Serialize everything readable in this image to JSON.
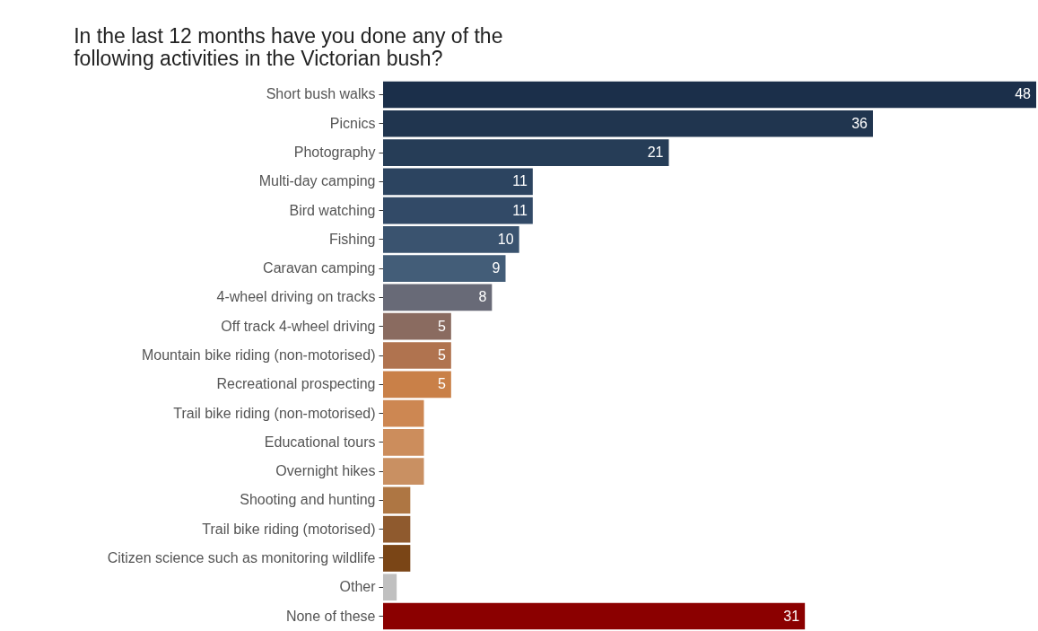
{
  "chart_data": {
    "type": "bar",
    "orientation": "horizontal",
    "title": "In the last 12 months have you done any of the following activities in the Victorian bush?",
    "categories": [
      "Short bush walks",
      "Picnics",
      "Photography",
      "Multi-day camping",
      "Bird watching",
      "Fishing",
      "Caravan camping",
      "4-wheel driving on tracks",
      "Off track 4-wheel driving",
      "Mountain bike riding (non-motorised)",
      "Recreational prospecting",
      "Trail bike riding (non-motorised)",
      "Educational tours",
      "Overnight hikes",
      "Shooting and hunting",
      "Trail bike riding (motorised)",
      "Citizen science such as monitoring wildlife",
      "Other",
      "None of these"
    ],
    "values": [
      48,
      36,
      21,
      11,
      11,
      10,
      9,
      8,
      5,
      5,
      5,
      3,
      3,
      3,
      2,
      2,
      2,
      1,
      31
    ],
    "value_labels": [
      "48",
      "36",
      "21",
      "11",
      "11",
      "10",
      "9",
      "8",
      "5",
      "5",
      "5",
      null,
      null,
      null,
      null,
      null,
      null,
      null,
      "31"
    ],
    "colors": [
      "#1b2f4a",
      "#20354f",
      "#263d57",
      "#2c4460",
      "#324a67",
      "#3a536f",
      "#435d78",
      "#686a77",
      "#8a6b60",
      "#b0734f",
      "#c98048",
      "#cd8752",
      "#cc8d5c",
      "#c99062",
      "#ae7643",
      "#8f5a2e",
      "#7a4516",
      "#c0c0c0",
      "#8b0000"
    ],
    "grid": false,
    "legend": false
  }
}
